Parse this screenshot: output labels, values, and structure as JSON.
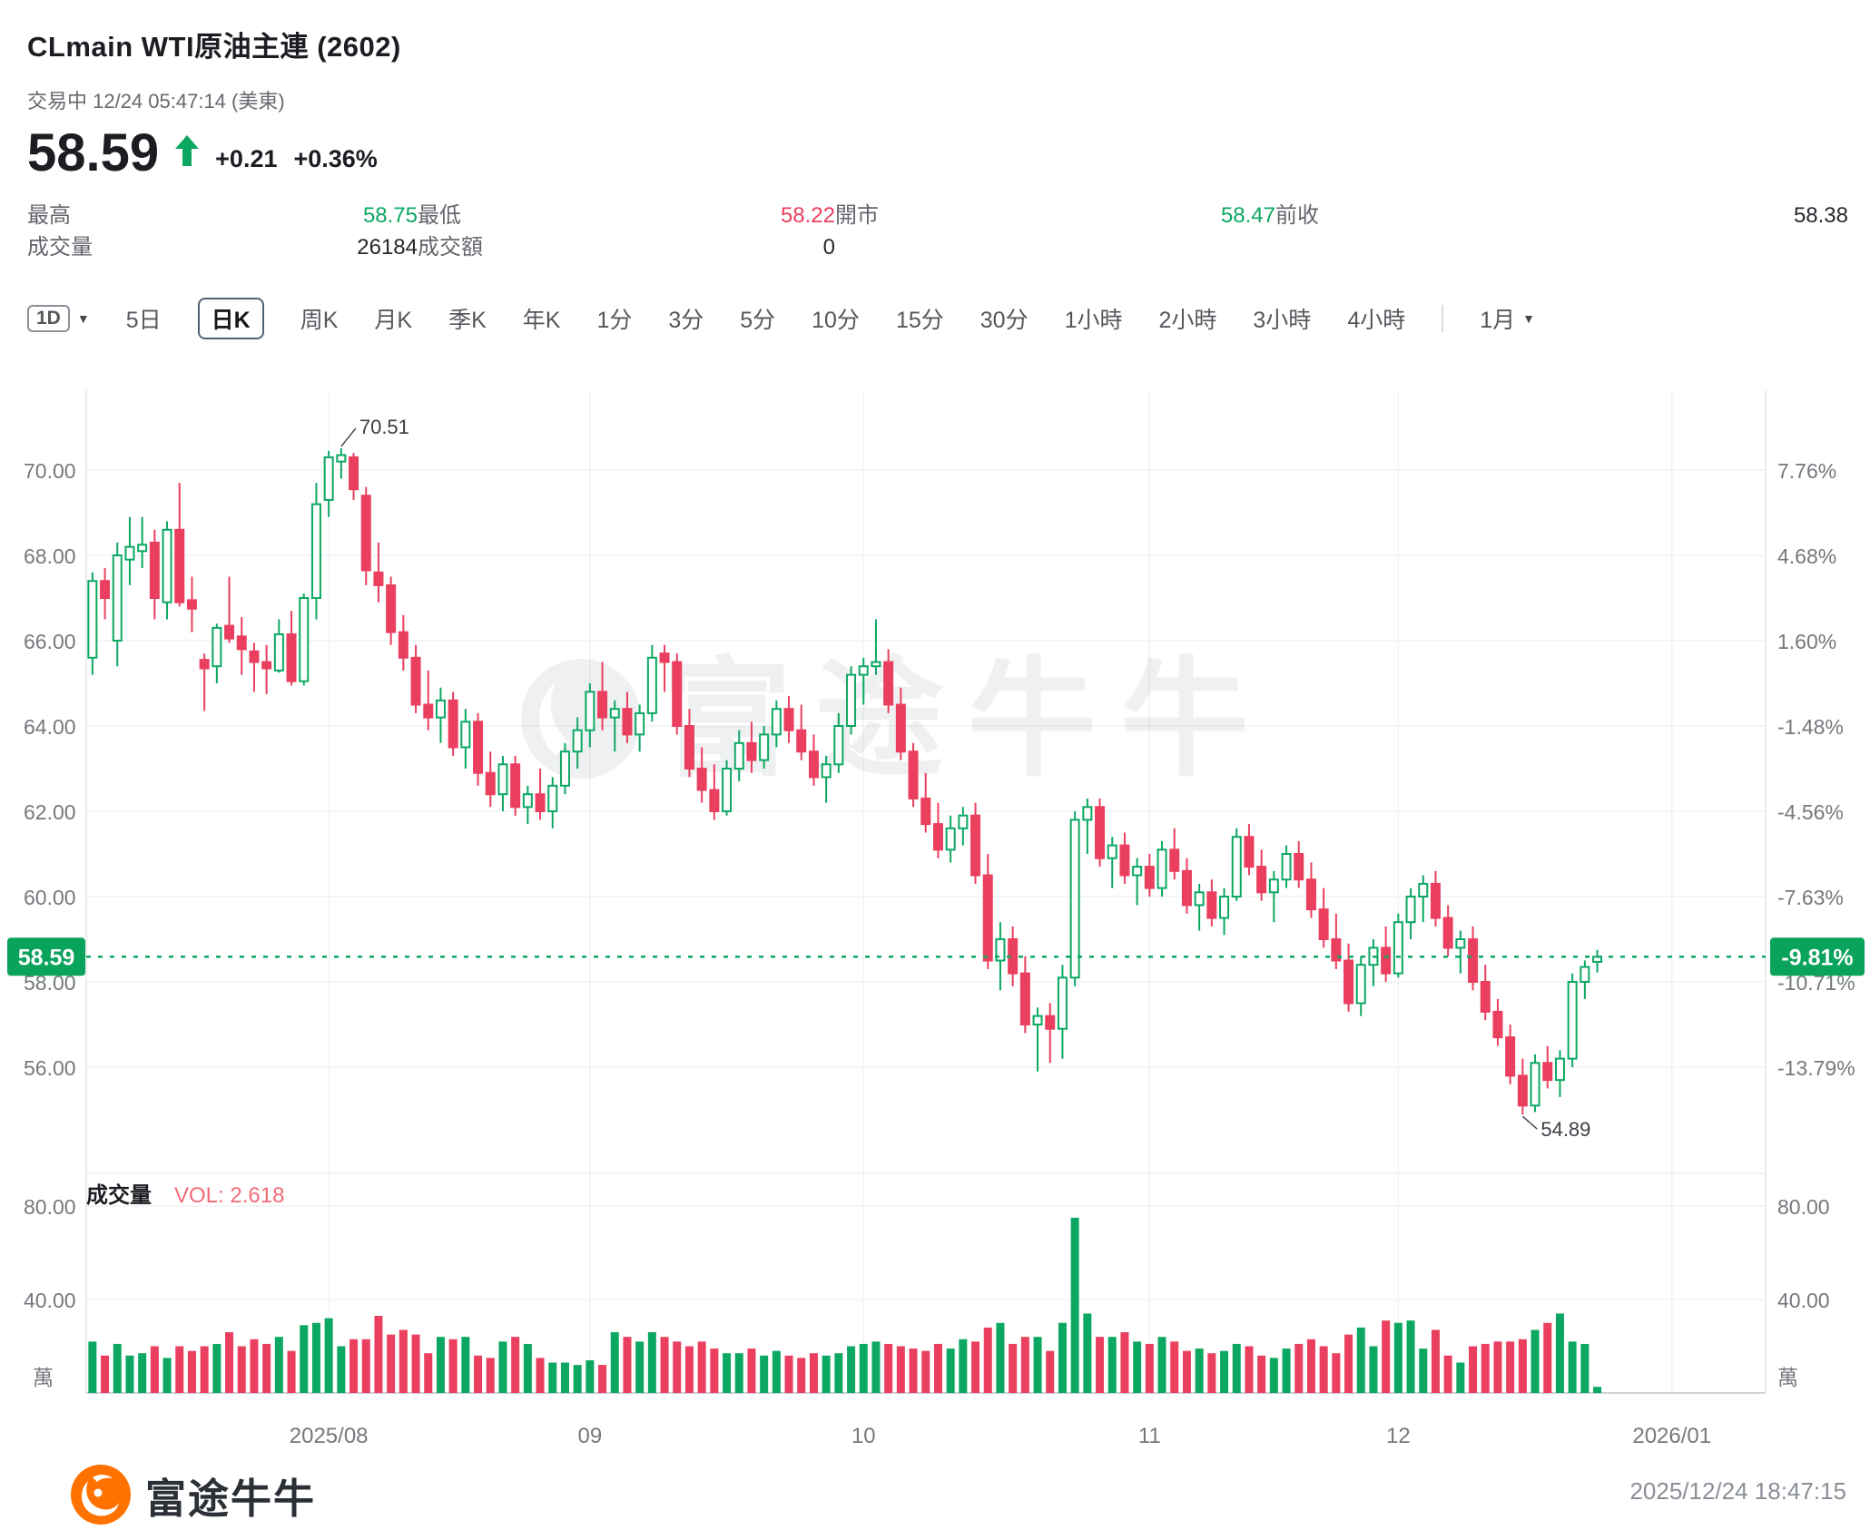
{
  "header": {
    "title": "CLmain  WTI原油主連 (2602)",
    "status": "交易中 12/24 05:47:14 (美東)",
    "price": "58.59",
    "change": "+0.21",
    "change_pct": "+0.36%",
    "arrow_icon": "up-arrow"
  },
  "colors": {
    "up": "#0CA862",
    "down": "#EA3F5E",
    "badge": "#0AA35C",
    "vol_text": "#F26C77",
    "axis_text": "#75787d",
    "grid": "#f1f2f4",
    "border": "#e4e6e9",
    "brand_orange": "#FF7200"
  },
  "stats": [
    {
      "label": "最高",
      "value": "58.75",
      "tone": "up"
    },
    {
      "label": "最低",
      "value": "58.22",
      "tone": "down"
    },
    {
      "label": "開市",
      "value": "58.47",
      "tone": "up"
    },
    {
      "label": "前收",
      "value": "58.38",
      "tone": "flat"
    },
    {
      "label": "成交量",
      "value": "26184",
      "tone": "flat"
    },
    {
      "label": "成交額",
      "value": "0",
      "tone": "flat"
    }
  ],
  "toolbar": {
    "dropdown_chip": "1D",
    "tabs": [
      {
        "label": "5日",
        "active": false
      },
      {
        "label": "日K",
        "active": true
      },
      {
        "label": "周K",
        "active": false
      },
      {
        "label": "月K",
        "active": false
      },
      {
        "label": "季K",
        "active": false
      },
      {
        "label": "年K",
        "active": false
      },
      {
        "label": "1分",
        "active": false
      },
      {
        "label": "3分",
        "active": false
      },
      {
        "label": "5分",
        "active": false
      },
      {
        "label": "10分",
        "active": false
      },
      {
        "label": "15分",
        "active": false
      },
      {
        "label": "30分",
        "active": false
      },
      {
        "label": "1小時",
        "active": false
      },
      {
        "label": "2小時",
        "active": false
      },
      {
        "label": "3小時",
        "active": false
      },
      {
        "label": "4小時",
        "active": false
      }
    ],
    "more_dropdown": "1月"
  },
  "chart_data": {
    "type": "candlestick",
    "title": "CLmain WTI原油主連 (2602) 日K",
    "ylim": [
      55.2,
      72.1
    ],
    "left_axis_labels": [
      "70.00",
      "68.00",
      "66.00",
      "64.00",
      "62.00",
      "60.00",
      "58.00",
      "56.00"
    ],
    "left_axis_prices": [
      70,
      68,
      66,
      64,
      62,
      60,
      58,
      56
    ],
    "right_axis_labels": [
      "7.76%",
      "4.68%",
      "1.60%",
      "-1.48%",
      "-4.56%",
      "-7.63%",
      "-10.71%",
      "-13.79%"
    ],
    "grid": true,
    "price_line": {
      "price": 58.59,
      "left_label": "58.59",
      "right_label": "-9.81%"
    },
    "annotations": {
      "high": {
        "text": "70.51",
        "day": 20,
        "price": 70.51
      },
      "low": {
        "text": "54.89",
        "day": 115,
        "price": 54.89
      }
    },
    "watermark": "富途牛牛",
    "months": [
      {
        "label": "2025/08",
        "index": 19
      },
      {
        "label": "09",
        "index": 40
      },
      {
        "label": "10",
        "index": 62
      },
      {
        "label": "11",
        "index": 85
      },
      {
        "label": "12",
        "index": 105
      },
      {
        "label": "2026/01",
        "index": 127
      }
    ],
    "volume_pane": {
      "title": "成交量",
      "vol_text": "VOL: 2.618",
      "axis_labels": [
        "80.00",
        "40.00"
      ],
      "axis_values": [
        80,
        40
      ],
      "unit": "萬"
    },
    "candles": [
      [
        65.6,
        67.6,
        65.2,
        67.4,
        22
      ],
      [
        67.4,
        67.7,
        66.5,
        67.0,
        16
      ],
      [
        66.0,
        68.3,
        65.4,
        68.0,
        21
      ],
      [
        67.9,
        68.9,
        67.3,
        68.2,
        16
      ],
      [
        68.1,
        68.9,
        67.7,
        68.25,
        17
      ],
      [
        68.3,
        68.6,
        66.5,
        67.0,
        20
      ],
      [
        66.9,
        68.8,
        66.5,
        68.6,
        15
      ],
      [
        68.6,
        69.7,
        66.8,
        66.9,
        20
      ],
      [
        66.95,
        67.5,
        66.2,
        66.75,
        18
      ],
      [
        65.55,
        65.7,
        64.35,
        65.35,
        20
      ],
      [
        65.4,
        66.4,
        65.0,
        66.3,
        21
      ],
      [
        66.35,
        67.5,
        65.95,
        66.05,
        26
      ],
      [
        66.1,
        66.55,
        65.2,
        65.8,
        20
      ],
      [
        65.75,
        65.95,
        64.8,
        65.5,
        23
      ],
      [
        65.5,
        65.9,
        64.75,
        65.35,
        21
      ],
      [
        65.3,
        66.5,
        65.25,
        66.15,
        24
      ],
      [
        66.15,
        66.7,
        64.95,
        65.05,
        18
      ],
      [
        65.05,
        67.1,
        64.95,
        67.0,
        29
      ],
      [
        67.0,
        69.7,
        66.5,
        69.2,
        30
      ],
      [
        69.3,
        70.45,
        68.9,
        70.3,
        32
      ],
      [
        70.2,
        70.51,
        69.8,
        70.35,
        20
      ],
      [
        70.3,
        70.4,
        69.3,
        69.55,
        23
      ],
      [
        69.4,
        69.6,
        67.3,
        67.65,
        23
      ],
      [
        67.6,
        68.3,
        66.9,
        67.3,
        33
      ],
      [
        67.3,
        67.5,
        65.9,
        66.2,
        25
      ],
      [
        66.2,
        66.6,
        65.3,
        65.6,
        27
      ],
      [
        65.6,
        65.9,
        64.3,
        64.5,
        25
      ],
      [
        64.5,
        65.3,
        63.9,
        64.2,
        17
      ],
      [
        64.2,
        64.9,
        63.6,
        64.6,
        24
      ],
      [
        64.6,
        64.8,
        63.3,
        63.5,
        23
      ],
      [
        63.5,
        64.4,
        63.0,
        64.1,
        24
      ],
      [
        64.1,
        64.3,
        62.6,
        62.9,
        16
      ],
      [
        62.9,
        63.4,
        62.1,
        62.4,
        15
      ],
      [
        62.4,
        63.3,
        62.0,
        63.1,
        22
      ],
      [
        63.1,
        63.3,
        61.9,
        62.1,
        24
      ],
      [
        62.1,
        62.6,
        61.7,
        62.4,
        21
      ],
      [
        62.4,
        63.0,
        61.8,
        62.0,
        15
      ],
      [
        62.0,
        62.8,
        61.6,
        62.6,
        13
      ],
      [
        62.6,
        63.6,
        62.4,
        63.4,
        13
      ],
      [
        63.4,
        64.2,
        63.0,
        63.9,
        12
      ],
      [
        63.9,
        65.0,
        63.5,
        64.8,
        14
      ],
      [
        64.8,
        65.5,
        63.9,
        64.2,
        12
      ],
      [
        64.2,
        64.6,
        63.4,
        64.4,
        26
      ],
      [
        64.4,
        64.8,
        63.6,
        63.8,
        24
      ],
      [
        63.8,
        64.5,
        63.4,
        64.3,
        22
      ],
      [
        64.3,
        65.9,
        64.1,
        65.6,
        26
      ],
      [
        65.7,
        65.9,
        64.8,
        65.5,
        24
      ],
      [
        65.5,
        65.7,
        63.8,
        64.0,
        22
      ],
      [
        64.0,
        64.4,
        62.8,
        63.0,
        20
      ],
      [
        63.0,
        63.5,
        62.2,
        62.5,
        22
      ],
      [
        62.5,
        63.1,
        61.8,
        62.0,
        19
      ],
      [
        62.0,
        63.2,
        61.9,
        63.0,
        17
      ],
      [
        63.0,
        63.9,
        62.7,
        63.6,
        17
      ],
      [
        63.6,
        64.1,
        62.9,
        63.2,
        19
      ],
      [
        63.2,
        64.0,
        63.0,
        63.8,
        16
      ],
      [
        63.8,
        64.6,
        63.5,
        64.4,
        18
      ],
      [
        64.4,
        64.7,
        63.6,
        63.9,
        16
      ],
      [
        63.9,
        64.5,
        63.2,
        63.4,
        15
      ],
      [
        63.4,
        63.8,
        62.6,
        62.8,
        17
      ],
      [
        62.8,
        63.3,
        62.2,
        63.1,
        16
      ],
      [
        63.1,
        64.3,
        62.9,
        64.0,
        17
      ],
      [
        64.0,
        65.4,
        63.8,
        65.2,
        20
      ],
      [
        65.2,
        65.6,
        64.5,
        65.4,
        21
      ],
      [
        65.4,
        66.5,
        65.2,
        65.5,
        22
      ],
      [
        65.5,
        65.8,
        64.3,
        64.5,
        21
      ],
      [
        64.5,
        64.9,
        63.2,
        63.4,
        20
      ],
      [
        63.4,
        63.6,
        62.1,
        62.3,
        19
      ],
      [
        62.3,
        62.9,
        61.5,
        61.7,
        18
      ],
      [
        61.7,
        62.2,
        60.9,
        61.1,
        21
      ],
      [
        61.1,
        61.9,
        60.8,
        61.6,
        19
      ],
      [
        61.6,
        62.1,
        61.2,
        61.9,
        23
      ],
      [
        61.9,
        62.2,
        60.3,
        60.5,
        22
      ],
      [
        60.5,
        61.0,
        58.3,
        58.5,
        28
      ],
      [
        58.5,
        59.4,
        57.8,
        59.0,
        30
      ],
      [
        59.0,
        59.3,
        57.9,
        58.2,
        21
      ],
      [
        58.2,
        58.6,
        56.8,
        57.0,
        24
      ],
      [
        57.0,
        57.4,
        55.9,
        57.2,
        24
      ],
      [
        57.2,
        57.5,
        56.1,
        56.9,
        18
      ],
      [
        56.9,
        58.4,
        56.2,
        58.1,
        30
      ],
      [
        58.1,
        62.0,
        57.9,
        61.8,
        75
      ],
      [
        61.8,
        62.3,
        61.0,
        62.1,
        34
      ],
      [
        62.1,
        62.3,
        60.7,
        60.9,
        24
      ],
      [
        60.9,
        61.4,
        60.2,
        61.2,
        24
      ],
      [
        61.2,
        61.5,
        60.3,
        60.5,
        26
      ],
      [
        60.5,
        60.9,
        59.8,
        60.7,
        22
      ],
      [
        60.7,
        61.0,
        60.0,
        60.2,
        21
      ],
      [
        60.2,
        61.3,
        60.0,
        61.1,
        24
      ],
      [
        61.1,
        61.6,
        60.4,
        60.6,
        22
      ],
      [
        60.6,
        60.9,
        59.6,
        59.8,
        18
      ],
      [
        59.8,
        60.3,
        59.2,
        60.1,
        19
      ],
      [
        60.1,
        60.4,
        59.3,
        59.5,
        17
      ],
      [
        59.5,
        60.2,
        59.1,
        60.0,
        18
      ],
      [
        60.0,
        61.6,
        59.9,
        61.4,
        21
      ],
      [
        61.4,
        61.7,
        60.5,
        60.7,
        20
      ],
      [
        60.7,
        61.1,
        59.9,
        60.1,
        16
      ],
      [
        60.1,
        60.6,
        59.4,
        60.4,
        15
      ],
      [
        60.4,
        61.2,
        60.2,
        61.0,
        19
      ],
      [
        61.0,
        61.3,
        60.2,
        60.4,
        21
      ],
      [
        60.4,
        60.8,
        59.5,
        59.7,
        23
      ],
      [
        59.7,
        60.2,
        58.8,
        59.0,
        20
      ],
      [
        59.0,
        59.6,
        58.3,
        58.5,
        17
      ],
      [
        58.5,
        58.9,
        57.3,
        57.5,
        25
      ],
      [
        57.5,
        58.6,
        57.2,
        58.4,
        28
      ],
      [
        58.4,
        59.0,
        57.9,
        58.8,
        20
      ],
      [
        58.8,
        59.3,
        58.0,
        58.2,
        31
      ],
      [
        58.2,
        59.6,
        58.1,
        59.4,
        30
      ],
      [
        59.4,
        60.2,
        59.0,
        60.0,
        31
      ],
      [
        60.0,
        60.5,
        59.4,
        60.3,
        19
      ],
      [
        60.3,
        60.6,
        59.3,
        59.5,
        27
      ],
      [
        59.5,
        59.8,
        58.6,
        58.8,
        16
      ],
      [
        58.8,
        59.2,
        58.2,
        59.0,
        13
      ],
      [
        59.0,
        59.3,
        57.8,
        58.0,
        20
      ],
      [
        58.0,
        58.4,
        57.1,
        57.3,
        21
      ],
      [
        57.3,
        57.6,
        56.5,
        56.7,
        22
      ],
      [
        56.7,
        57.0,
        55.6,
        55.8,
        22
      ],
      [
        55.8,
        56.2,
        54.89,
        55.1,
        23
      ],
      [
        55.1,
        56.3,
        54.95,
        56.1,
        27
      ],
      [
        56.1,
        56.5,
        55.5,
        55.7,
        30
      ],
      [
        55.7,
        56.4,
        55.3,
        56.2,
        34
      ],
      [
        56.2,
        58.2,
        56.0,
        58.0,
        22
      ],
      [
        58.0,
        58.5,
        57.6,
        58.35,
        21
      ],
      [
        58.47,
        58.75,
        58.22,
        58.59,
        2.618
      ]
    ]
  },
  "footer": {
    "brand": "富途牛牛",
    "timestamp": "2025/12/24 18:47:15"
  }
}
